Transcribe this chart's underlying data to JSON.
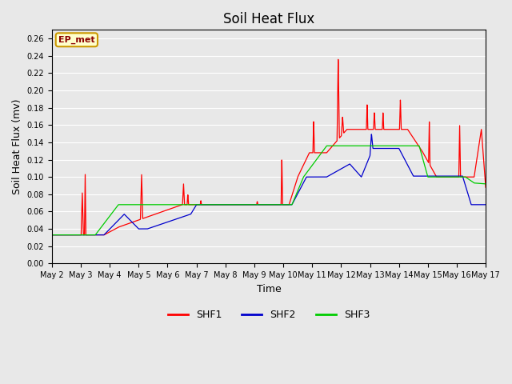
{
  "title": "Soil Heat Flux",
  "xlabel": "Time",
  "ylabel": "Soil Heat Flux (mv)",
  "ylim": [
    0.0,
    0.27
  ],
  "yticks": [
    0.0,
    0.02,
    0.04,
    0.06,
    0.08,
    0.1,
    0.12,
    0.14,
    0.16,
    0.18,
    0.2,
    0.22,
    0.24,
    0.26
  ],
  "xlim": [
    0,
    15
  ],
  "xtick_positions": [
    0,
    1,
    2,
    3,
    4,
    5,
    6,
    7,
    8,
    9,
    10,
    11,
    12,
    13,
    14,
    15
  ],
  "xtick_labels": [
    "May 2",
    "May 3",
    "May 4",
    "May 5",
    "May 6",
    "May 7",
    "May 8",
    "May 9",
    "May 10",
    "May 11",
    "May 12",
    "May 13",
    "May 14",
    "May 15",
    "May 16",
    "May 17"
  ],
  "bg_color": "#e8e8e8",
  "plot_bg_color": "#e8e8e8",
  "annotation_text": "EP_met",
  "annotation_bg": "#ffffcc",
  "annotation_border": "#cc9900",
  "annotation_text_color": "#8b0000",
  "shf1_color": "#ff0000",
  "shf2_color": "#0000cc",
  "shf3_color": "#00cc00",
  "legend_entries": [
    "SHF1",
    "SHF2",
    "SHF3"
  ],
  "figsize": [
    6.4,
    4.8
  ],
  "dpi": 100
}
